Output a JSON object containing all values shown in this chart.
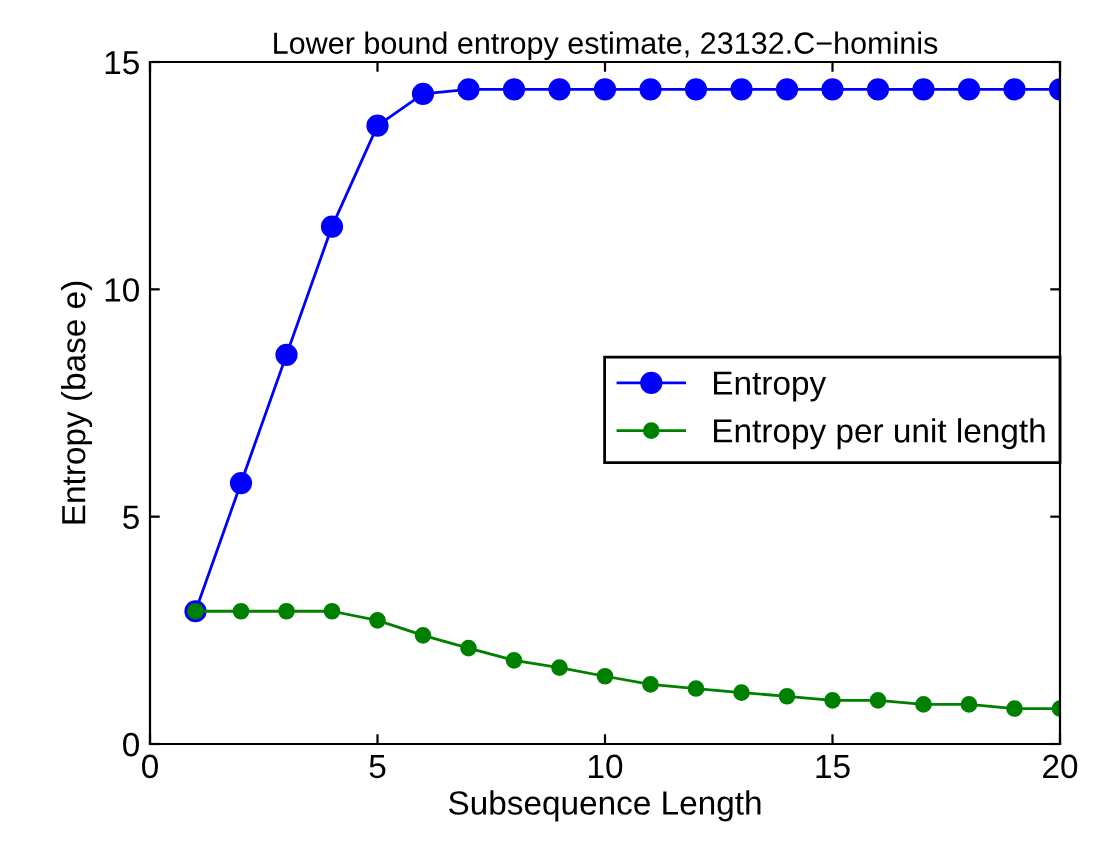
{
  "chart_data": {
    "type": "line",
    "title": "Lower bound entropy estimate, 23132.C−hominis",
    "xlabel": "Subsequence Length",
    "ylabel": "Entropy (base e)",
    "x": [
      1,
      2,
      3,
      4,
      5,
      6,
      7,
      8,
      9,
      10,
      11,
      12,
      13,
      14,
      15,
      16,
      17,
      18,
      19,
      20
    ],
    "series": [
      {
        "name": "Entropy",
        "color": "#0000ff",
        "values": [
          2.92,
          5.74,
          8.56,
          11.38,
          13.6,
          14.3,
          14.4,
          14.4,
          14.4,
          14.4,
          14.4,
          14.4,
          14.4,
          14.4,
          14.4,
          14.4,
          14.4,
          14.4,
          14.4,
          14.4
        ]
      },
      {
        "name": "Entropy per unit length",
        "color": "#008000",
        "values": [
          2.92,
          2.92,
          2.92,
          2.92,
          2.72,
          2.39,
          2.11,
          1.84,
          1.68,
          1.49,
          1.31,
          1.22,
          1.13,
          1.05,
          0.96,
          0.96,
          0.87,
          0.87,
          0.78,
          0.78
        ]
      }
    ],
    "xlim": [
      0,
      20
    ],
    "ylim": [
      0,
      15
    ],
    "xticks": [
      0,
      5,
      10,
      15,
      20
    ],
    "yticks": [
      0,
      5,
      10,
      15
    ],
    "marker": "circle",
    "line_style": "solid",
    "legend": "right",
    "grid": false
  }
}
